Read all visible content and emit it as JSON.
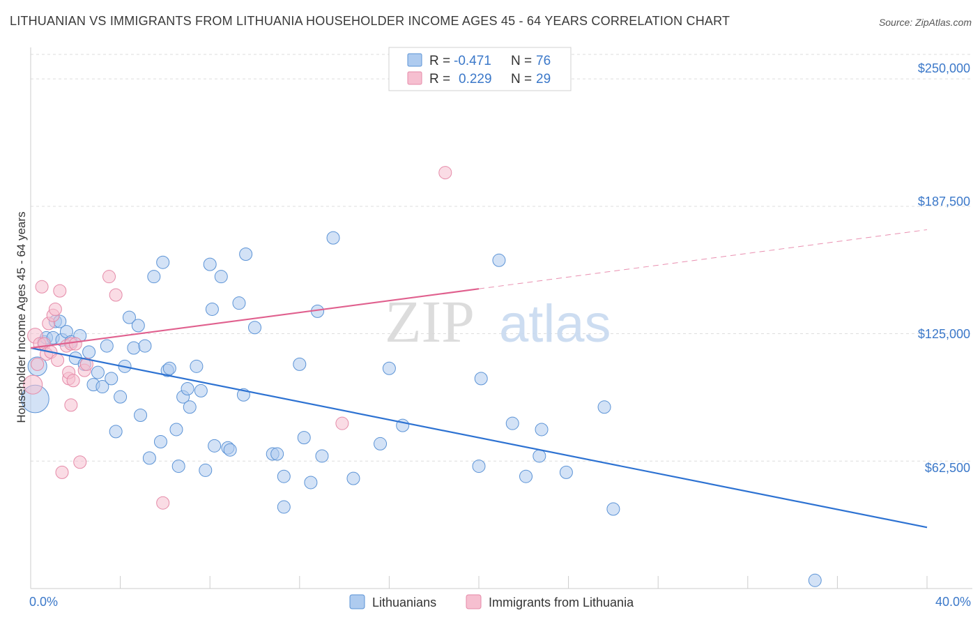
{
  "title": "LITHUANIAN VS IMMIGRANTS FROM LITHUANIA HOUSEHOLDER INCOME AGES 45 - 64 YEARS CORRELATION CHART",
  "source": "Source: ZipAtlas.com",
  "watermark": {
    "zip": "ZIP",
    "atlas": "atlas"
  },
  "colors": {
    "blue_fill": "#aecbef",
    "blue_stroke": "#5b93d6",
    "blue_line": "#2d72d2",
    "pink_fill": "#f6bfd0",
    "pink_stroke": "#e58aa8",
    "pink_line": "#e0608e",
    "grid": "#dddddd",
    "tick_text": "#3b78c9"
  },
  "legend_top": {
    "row1": {
      "r_label": "R =",
      "r_value": "-0.471",
      "n_label": "N =",
      "n_value": "76"
    },
    "row2": {
      "r_label": "R =",
      "r_value": "0.229",
      "n_label": "N =",
      "n_value": "29"
    }
  },
  "chart_data": {
    "type": "scatter",
    "title": "LITHUANIAN VS IMMIGRANTS FROM LITHUANIA HOUSEHOLDER INCOME AGES 45 - 64 YEARS CORRELATION CHART",
    "xlabel": "",
    "ylabel": "Householder Income Ages 45 - 64 years",
    "xlim": [
      0,
      40
    ],
    "ylim": [
      0,
      262000
    ],
    "x_tick_labels": {
      "left": "0.0%",
      "right": "40.0%"
    },
    "x_minor_ticks": [
      0,
      4,
      8,
      12,
      16,
      20,
      24,
      28,
      32,
      36,
      40
    ],
    "y_ticks": [
      {
        "value": 62500,
        "label": "$62,500"
      },
      {
        "value": 125000,
        "label": "$125,000"
      },
      {
        "value": 187500,
        "label": "$187,500"
      },
      {
        "value": 250000,
        "label": "$250,000"
      }
    ],
    "grid": true,
    "series": [
      {
        "name": "Lithuanians",
        "color": "blue",
        "trend": {
          "x0": 0,
          "y0": 118000,
          "x1": 40,
          "y1": 30000,
          "dashed_to": null
        },
        "points": [
          [
            0.2,
            93000,
            2.2
          ],
          [
            0.3,
            109000,
            1.5
          ],
          [
            0.6,
            121000,
            1
          ],
          [
            0.7,
            123000,
            1
          ],
          [
            1.0,
            123000,
            1
          ],
          [
            1.1,
            131000,
            1
          ],
          [
            1.3,
            131000,
            1
          ],
          [
            1.4,
            122000,
            1
          ],
          [
            1.6,
            126000,
            1
          ],
          [
            1.8,
            121000,
            1
          ],
          [
            2.0,
            113000,
            1
          ],
          [
            2.2,
            124000,
            1
          ],
          [
            2.4,
            110000,
            1
          ],
          [
            2.6,
            116000,
            1
          ],
          [
            2.8,
            100000,
            1
          ],
          [
            3.0,
            106000,
            1
          ],
          [
            3.2,
            99000,
            1
          ],
          [
            3.4,
            119000,
            1
          ],
          [
            3.6,
            103000,
            1
          ],
          [
            3.8,
            77000,
            1
          ],
          [
            4.0,
            94000,
            1
          ],
          [
            4.2,
            109000,
            1
          ],
          [
            4.4,
            133000,
            1
          ],
          [
            4.6,
            118000,
            1
          ],
          [
            4.8,
            129000,
            1
          ],
          [
            4.9,
            85000,
            1
          ],
          [
            5.1,
            119000,
            1
          ],
          [
            5.3,
            64000,
            1
          ],
          [
            5.5,
            153000,
            1
          ],
          [
            5.8,
            72000,
            1
          ],
          [
            5.9,
            160000,
            1
          ],
          [
            6.1,
            107000,
            1
          ],
          [
            6.2,
            108000,
            1
          ],
          [
            6.5,
            78000,
            1
          ],
          [
            6.6,
            60000,
            1
          ],
          [
            6.8,
            94000,
            1
          ],
          [
            7.0,
            98000,
            1
          ],
          [
            7.1,
            89000,
            1
          ],
          [
            7.4,
            109000,
            1
          ],
          [
            7.6,
            97000,
            1
          ],
          [
            7.8,
            58000,
            1
          ],
          [
            8.0,
            159000,
            1
          ],
          [
            8.1,
            137000,
            1
          ],
          [
            8.2,
            70000,
            1
          ],
          [
            8.5,
            153000,
            1
          ],
          [
            8.8,
            69000,
            1
          ],
          [
            8.9,
            68000,
            1
          ],
          [
            9.3,
            140000,
            1
          ],
          [
            9.5,
            95000,
            1
          ],
          [
            9.6,
            164000,
            1
          ],
          [
            10.0,
            128000,
            1
          ],
          [
            10.8,
            66000,
            1
          ],
          [
            11.0,
            66000,
            1
          ],
          [
            11.3,
            55000,
            1
          ],
          [
            11.3,
            40000,
            1
          ],
          [
            12.0,
            110000,
            1
          ],
          [
            12.2,
            74000,
            1
          ],
          [
            12.5,
            52000,
            1
          ],
          [
            12.8,
            136000,
            1
          ],
          [
            13.0,
            65000,
            1
          ],
          [
            13.5,
            172000,
            1
          ],
          [
            14.4,
            54000,
            1
          ],
          [
            15.6,
            71000,
            1
          ],
          [
            16.0,
            108000,
            1
          ],
          [
            16.6,
            80000,
            1
          ],
          [
            20.0,
            60000,
            1
          ],
          [
            20.1,
            103000,
            1
          ],
          [
            20.9,
            161000,
            1
          ],
          [
            21.5,
            81000,
            1
          ],
          [
            22.1,
            55000,
            1
          ],
          [
            22.7,
            65000,
            1
          ],
          [
            22.8,
            78000,
            1
          ],
          [
            23.9,
            57000,
            1
          ],
          [
            25.6,
            89000,
            1
          ],
          [
            26.0,
            39000,
            1
          ],
          [
            35.0,
            4000,
            1
          ]
        ]
      },
      {
        "name": "Immigrants from Lithuania",
        "color": "pink",
        "trend": {
          "x0": 0,
          "y0": 118000,
          "x1": 20,
          "y1": 147000,
          "dashed_to": {
            "x": 40,
            "y": 176000
          }
        },
        "points": [
          [
            0.1,
            100000,
            1.5
          ],
          [
            0.2,
            124000,
            1.2
          ],
          [
            0.4,
            120000,
            1
          ],
          [
            0.5,
            148000,
            1
          ],
          [
            0.6,
            120000,
            1
          ],
          [
            0.7,
            115000,
            1
          ],
          [
            0.8,
            130000,
            1
          ],
          [
            0.9,
            116000,
            1
          ],
          [
            1.0,
            134000,
            1
          ],
          [
            1.1,
            137000,
            1
          ],
          [
            1.2,
            112000,
            1
          ],
          [
            1.3,
            146000,
            1
          ],
          [
            1.4,
            57000,
            1
          ],
          [
            1.6,
            119000,
            1
          ],
          [
            1.7,
            103000,
            1
          ],
          [
            1.7,
            106000,
            1
          ],
          [
            1.8,
            120000,
            1
          ],
          [
            1.8,
            90000,
            1
          ],
          [
            1.9,
            102000,
            1
          ],
          [
            2.0,
            120000,
            1
          ],
          [
            2.2,
            62000,
            1
          ],
          [
            2.4,
            107000,
            1
          ],
          [
            2.5,
            110000,
            1
          ],
          [
            3.5,
            153000,
            1
          ],
          [
            3.8,
            144000,
            1
          ],
          [
            5.9,
            42000,
            1
          ],
          [
            13.9,
            81000,
            1
          ],
          [
            18.5,
            204000,
            1
          ],
          [
            0.3,
            110000,
            1
          ]
        ]
      }
    ]
  },
  "legend_bottom": {
    "items": [
      {
        "label": "Lithuanians"
      },
      {
        "label": "Immigrants from Lithuania"
      }
    ]
  }
}
